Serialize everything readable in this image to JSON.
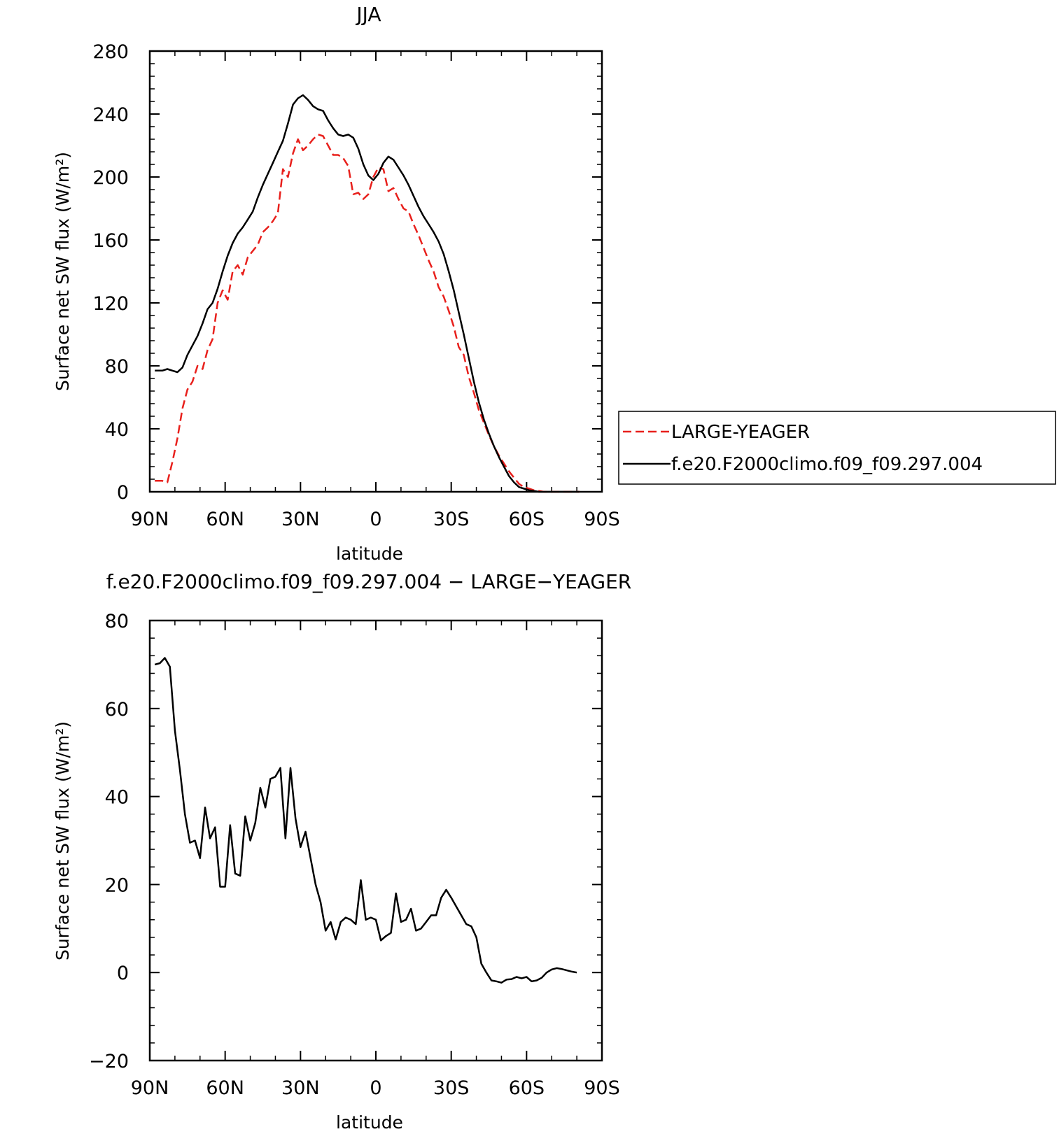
{
  "chart_data": [
    {
      "type": "line",
      "title": "JJA",
      "xlabel": "latitude",
      "ylabel": "Surface net SW flux (W/m²)",
      "xlim": [
        90,
        -90
      ],
      "ylim": [
        0,
        280
      ],
      "xticks": [
        90,
        60,
        30,
        0,
        -30,
        -60,
        -90
      ],
      "xtick_labels": [
        "90N",
        "60N",
        "30N",
        "0",
        "30S",
        "60S",
        "90S"
      ],
      "yticks": [
        0,
        40,
        80,
        120,
        160,
        200,
        240,
        280
      ],
      "ytick_labels": [
        "0",
        "40",
        "80",
        "120",
        "160",
        "200",
        "240",
        "280"
      ],
      "grid": false,
      "legend": "right",
      "series": [
        {
          "name": "LARGE-YEAGER",
          "color": "#e8201c",
          "dash": "dashed",
          "x": [
            88,
            85,
            83,
            81,
            79,
            77,
            75,
            73,
            71,
            69,
            67,
            65,
            63,
            61,
            59,
            57,
            55,
            53,
            51,
            49,
            47,
            45,
            43,
            41,
            39,
            37,
            35,
            33,
            31,
            29,
            27,
            25,
            23,
            21,
            19,
            17,
            15,
            13,
            11,
            9,
            7,
            5,
            3,
            1,
            -1,
            -3,
            -5,
            -7,
            -9,
            -11,
            -13,
            -15,
            -17,
            -19,
            -21,
            -23,
            -25,
            -27,
            -29,
            -31,
            -33,
            -35,
            -37,
            -39,
            -41,
            -43,
            -45,
            -47,
            -49,
            -51,
            -53,
            -55,
            -57,
            -59,
            -61,
            -63,
            -65,
            -67,
            -69,
            -71,
            -73,
            -75,
            -77,
            -79,
            -81
          ],
          "values": [
            7,
            7,
            6,
            19,
            34,
            53,
            65,
            70,
            80,
            78,
            90,
            97,
            120,
            128,
            122,
            140,
            144,
            138,
            149,
            153,
            157,
            165,
            168,
            172,
            177,
            205,
            200,
            215,
            224,
            217,
            220,
            224,
            227,
            226,
            220,
            214,
            214,
            212,
            207,
            189,
            190,
            186,
            189,
            200,
            206,
            205,
            191,
            193,
            186,
            180,
            178,
            170,
            163,
            155,
            147,
            140,
            130,
            124,
            115,
            105,
            92,
            87,
            73,
            63,
            52,
            44,
            36,
            29,
            23,
            18,
            13,
            9,
            5,
            3,
            2,
            1,
            0.5,
            0,
            0,
            0,
            0,
            0,
            0,
            0,
            0
          ]
        },
        {
          "name": "f.e20.F2000climo.f09_f09.297.004",
          "color": "#000000",
          "dash": "solid",
          "x": [
            88,
            85,
            83,
            81,
            79,
            77,
            75,
            73,
            71,
            69,
            67,
            65,
            63,
            61,
            59,
            57,
            55,
            53,
            51,
            49,
            47,
            45,
            43,
            41,
            39,
            37,
            35,
            33,
            31,
            29,
            27,
            25,
            23,
            21,
            19,
            17,
            15,
            13,
            11,
            9,
            7,
            5,
            3,
            1,
            -1,
            -3,
            -5,
            -7,
            -9,
            -11,
            -13,
            -15,
            -17,
            -19,
            -21,
            -23,
            -25,
            -27,
            -29,
            -31,
            -33,
            -35,
            -37,
            -39,
            -41,
            -43,
            -45,
            -47,
            -49,
            -51,
            -53,
            -55,
            -57,
            -59,
            -61,
            -63,
            -65,
            -67,
            -69,
            -71,
            -73,
            -75,
            -77,
            -79,
            -81
          ],
          "values": [
            77,
            77,
            78,
            77,
            76,
            79,
            87,
            93,
            99,
            107,
            116,
            120,
            129,
            140,
            150,
            158,
            164,
            168,
            173,
            178,
            187,
            195,
            202,
            209,
            216,
            223,
            234,
            246,
            250,
            252,
            249,
            245,
            243,
            242,
            236,
            231,
            227,
            226,
            227,
            225,
            218,
            208,
            201,
            198,
            202,
            209,
            213,
            211,
            206,
            201,
            195,
            188,
            181,
            175,
            170,
            165,
            159,
            151,
            140,
            128,
            114,
            100,
            85,
            70,
            57,
            46,
            37,
            29,
            22,
            16,
            10,
            6,
            3,
            2,
            1,
            0.5,
            0,
            0,
            0,
            0,
            0,
            0,
            0,
            0,
            0
          ]
        }
      ]
    },
    {
      "type": "line",
      "title": "f.e20.F2000climo.f09_f09.297.004 − LARGE−YEAGER",
      "xlabel": "latitude",
      "ylabel": "Surface net SW flux (W/m²)",
      "xlim": [
        90,
        -90
      ],
      "ylim": [
        -20,
        80
      ],
      "xticks": [
        90,
        60,
        30,
        0,
        -30,
        -60,
        -90
      ],
      "xtick_labels": [
        "90N",
        "60N",
        "30N",
        "0",
        "30S",
        "60S",
        "90S"
      ],
      "yticks": [
        -20,
        0,
        20,
        40,
        60,
        80
      ],
      "ytick_labels": [
        "−20",
        "0",
        "20",
        "40",
        "60",
        "80"
      ],
      "grid": false,
      "series": [
        {
          "color": "#000000",
          "dash": "solid",
          "x": [
            88,
            86,
            84,
            82,
            80,
            78,
            76,
            74,
            72,
            70,
            68,
            66,
            64,
            62,
            60,
            58,
            56,
            54,
            52,
            50,
            48,
            46,
            44,
            42,
            40,
            38,
            36,
            34,
            32,
            30,
            28,
            26,
            24,
            22,
            20,
            18,
            16,
            14,
            12,
            10,
            8,
            6,
            4,
            2,
            0,
            -2,
            -4,
            -6,
            -8,
            -10,
            -12,
            -14,
            -16,
            -18,
            -20,
            -22,
            -24,
            -26,
            -28,
            -30,
            -32,
            -34,
            -36,
            -38,
            -40,
            -42,
            -44,
            -46,
            -48,
            -50,
            -52,
            -54,
            -56,
            -58,
            -60,
            -62,
            -64,
            -66,
            -68,
            -70,
            -72,
            -74,
            -76,
            -78,
            -80
          ],
          "values": [
            70,
            70.3,
            71.5,
            69.5,
            55,
            46,
            36,
            29.5,
            30,
            26,
            37.5,
            30.5,
            33,
            19.5,
            19.5,
            33.5,
            22.5,
            22,
            35.5,
            30,
            34,
            42,
            37.5,
            44,
            44.5,
            46.5,
            30.5,
            46.5,
            35,
            28.5,
            32,
            26,
            20,
            16,
            9.5,
            11.5,
            7.5,
            11.5,
            12.5,
            12,
            11,
            21,
            12,
            12.5,
            12,
            7.3,
            8.3,
            9,
            18,
            11.5,
            12,
            14.5,
            9.5,
            10,
            11.5,
            13,
            13,
            17,
            18.8,
            17,
            15,
            13,
            11,
            10.5,
            8,
            2,
            0,
            -1.8,
            -2,
            -2.3,
            -1.6,
            -1.5,
            -1,
            -1.3,
            -1,
            -2,
            -1.8,
            -1.2,
            0,
            0.7,
            1,
            0.8,
            0.5,
            0.2,
            0
          ]
        }
      ]
    }
  ]
}
